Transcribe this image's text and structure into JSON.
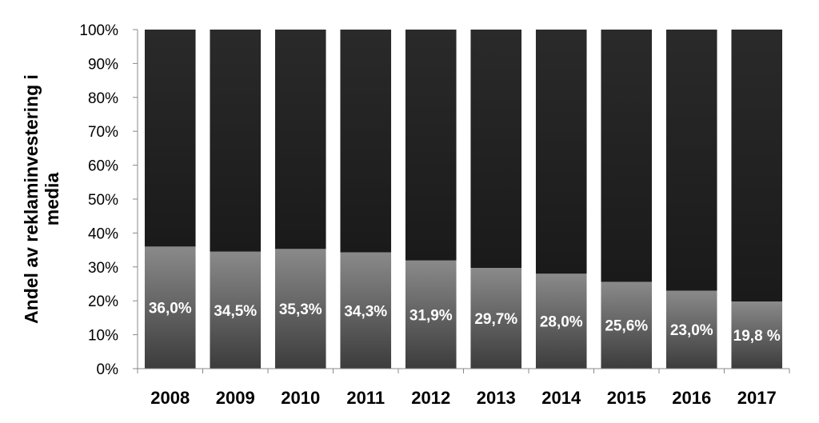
{
  "chart_data": {
    "type": "bar",
    "stacked": true,
    "normalized": true,
    "categories": [
      "2008",
      "2009",
      "2010",
      "2011",
      "2012",
      "2013",
      "2014",
      "2015",
      "2016",
      "2017"
    ],
    "series": [
      {
        "values": [
          36.0,
          34.5,
          35.3,
          34.3,
          31.9,
          29.7,
          28.0,
          25.6,
          23.0,
          19.8
        ],
        "color": "#7a7a7a"
      },
      {
        "values": [
          64.0,
          65.5,
          64.7,
          65.7,
          68.1,
          70.3,
          72.0,
          74.4,
          77.0,
          80.2
        ],
        "color": "#1e1e1e"
      }
    ],
    "data_labels": [
      "36,0%",
      "34,5%",
      "35,3%",
      "34,3%",
      "31,9%",
      "29,7%",
      "28,0%",
      "25,6%",
      "23,0%",
      "19,8 %"
    ],
    "y_ticks": [
      "0%",
      "10%",
      "20%",
      "30%",
      "40%",
      "50%",
      "60%",
      "70%",
      "80%",
      "90%",
      "100%"
    ],
    "ylabel_lines": [
      "Andel av reklaminvestering i",
      "media"
    ],
    "ylim": [
      0,
      100
    ],
    "grid": false,
    "legend": "none"
  }
}
